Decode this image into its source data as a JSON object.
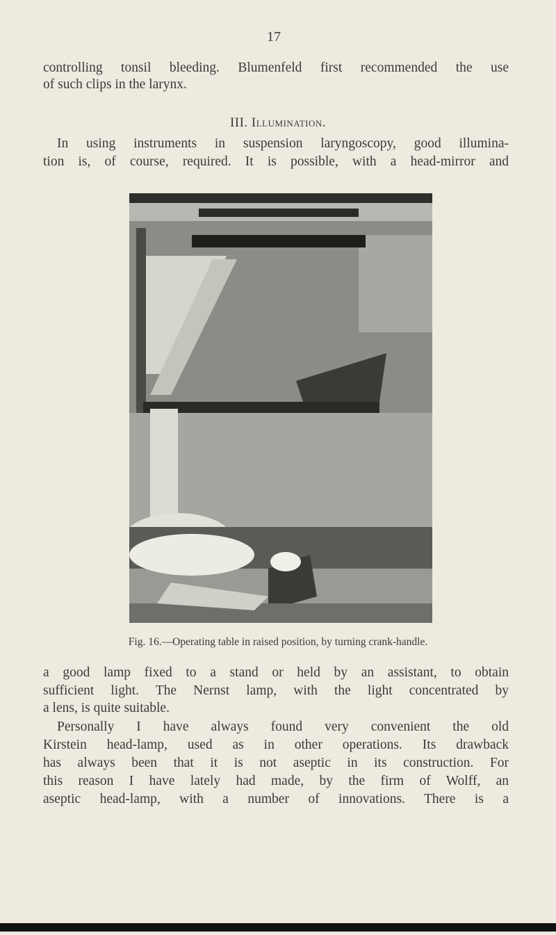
{
  "page_number": "17",
  "paragraph_1": [
    "controlling tonsil bleeding. Blumenfeld first recommended the use",
    "of such clips in the larynx."
  ],
  "heading": "III. Illumination.",
  "paragraph_2": [
    "In using instruments in suspension laryngoscopy, good illumina-",
    "tion is, of course, required. It is possible, with a head-mirror and"
  ],
  "figure_caption": "Fig. 16.—Operating table in raised position, by turning crank-handle.",
  "paragraph_3": [
    "a good lamp fixed to a stand or held by an assistant, to obtain",
    "sufficient light. The Nernst lamp, with the light concentrated by",
    "a lens, is quite suitable.",
    "Personally I have always found very convenient the old",
    "Kirstein head-lamp, used as in other operations. Its drawback",
    "has always been that it is not aseptic in its construction. For",
    "this reason I have lately had made, by the firm of Wolff, an",
    "aseptic head-lamp, with a number of innovations. There is a"
  ]
}
